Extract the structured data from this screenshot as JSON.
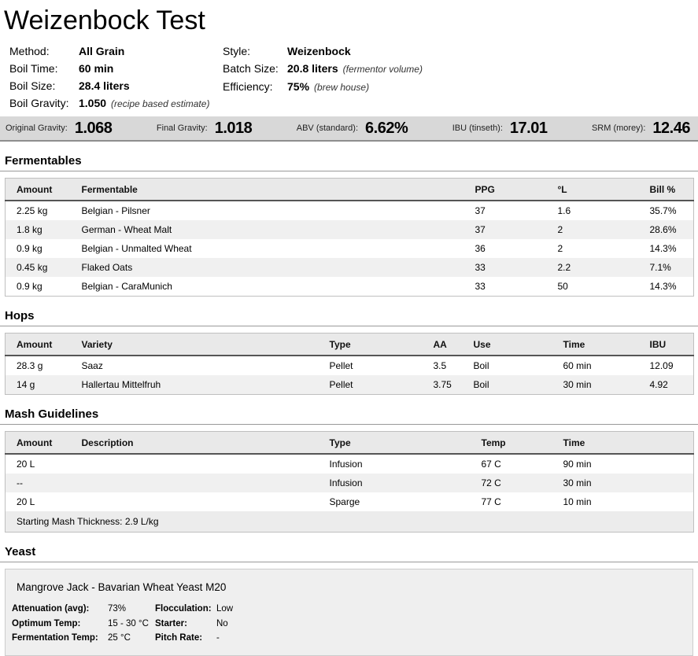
{
  "title": "Weizenbock Test",
  "meta": {
    "left": [
      {
        "label": "Method:",
        "value": "All Grain",
        "note": ""
      },
      {
        "label": "Boil Time:",
        "value": "60 min",
        "note": ""
      },
      {
        "label": "Boil Size:",
        "value": "28.4 liters",
        "note": ""
      },
      {
        "label": "Boil Gravity:",
        "value": "1.050",
        "note": "(recipe based estimate)"
      }
    ],
    "right": [
      {
        "label": "Style:",
        "value": "Weizenbock",
        "note": ""
      },
      {
        "label": "Batch Size:",
        "value": "20.8 liters",
        "note": "(fermentor volume)"
      },
      {
        "label": "Efficiency:",
        "value": "75%",
        "note": "(brew house)"
      }
    ]
  },
  "stats": [
    {
      "label": "Original Gravity:",
      "value": "1.068"
    },
    {
      "label": "Final Gravity:",
      "value": "1.018"
    },
    {
      "label": "ABV (standard):",
      "value": "6.62%"
    },
    {
      "label": "IBU (tinseth):",
      "value": "17.01"
    },
    {
      "label": "SRM (morey):",
      "value": "12.46"
    }
  ],
  "fermentables": {
    "heading": "Fermentables",
    "columns": [
      "Amount",
      "Fermentable",
      "PPG",
      "°L",
      "Bill %"
    ],
    "rows": [
      [
        "2.25 kg",
        "Belgian - Pilsner",
        "37",
        "1.6",
        "35.7%"
      ],
      [
        "1.8 kg",
        "German - Wheat Malt",
        "37",
        "2",
        "28.6%"
      ],
      [
        "0.9 kg",
        "Belgian - Unmalted Wheat",
        "36",
        "2",
        "14.3%"
      ],
      [
        "0.45 kg",
        "Flaked Oats",
        "33",
        "2.2",
        "7.1%"
      ],
      [
        "0.9 kg",
        "Belgian - CaraMunich",
        "33",
        "50",
        "14.3%"
      ]
    ]
  },
  "hops": {
    "heading": "Hops",
    "columns": [
      "Amount",
      "Variety",
      "Type",
      "AA",
      "Use",
      "Time",
      "IBU"
    ],
    "rows": [
      [
        "28.3 g",
        "Saaz",
        "Pellet",
        "3.5",
        "Boil",
        "60 min",
        "12.09"
      ],
      [
        "14 g",
        "Hallertau Mittelfruh",
        "Pellet",
        "3.75",
        "Boil",
        "30 min",
        "4.92"
      ]
    ]
  },
  "mash": {
    "heading": "Mash Guidelines",
    "columns": [
      "Amount",
      "Description",
      "Type",
      "Temp",
      "Time"
    ],
    "rows": [
      [
        "20 L",
        "",
        "Infusion",
        "67 C",
        "90 min"
      ],
      [
        "--",
        "",
        "Infusion",
        "72 C",
        "30 min"
      ],
      [
        "20 L",
        "",
        "Sparge",
        "77 C",
        "10 min"
      ]
    ],
    "footer": "Starting Mash Thickness: 2.9 L/kg"
  },
  "yeast": {
    "heading": "Yeast",
    "name": "Mangrove Jack - Bavarian Wheat Yeast M20",
    "attrs": [
      {
        "label": "Attenuation (avg):",
        "value": "73%",
        "label2": "Flocculation:",
        "value2": "Low"
      },
      {
        "label": "Optimum Temp:",
        "value": "15 - 30 °C",
        "label2": "Starter:",
        "value2": "No"
      },
      {
        "label": "Fermentation Temp:",
        "value": "25 °C",
        "label2": "Pitch Rate:",
        "value2": "-"
      }
    ]
  }
}
